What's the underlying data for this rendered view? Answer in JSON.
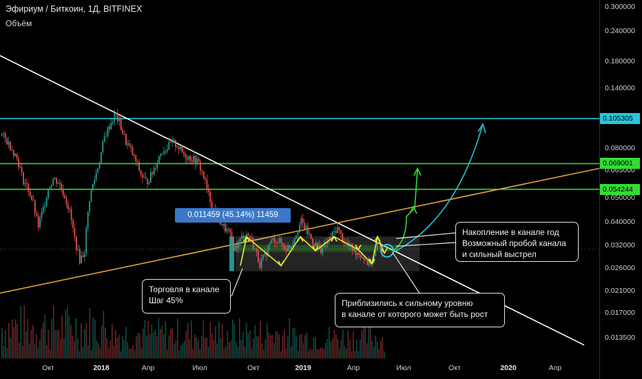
{
  "chart_title": "Эфириум / Биткоин, 1Д, BITFINEX",
  "volume_label": "Объём",
  "chart_data": {
    "type": "candlestick",
    "symbol": "ETH/BTC",
    "timeframe": "1Д",
    "exchange": "BITFINEX",
    "y_scale": "log",
    "y_ticks": [
      "0.300000",
      "0.240000",
      "0.180000",
      "0.140000",
      "0.080000",
      "0.065000",
      "0.050000",
      "0.040000",
      "0.032000",
      "0.026000",
      "0.021000",
      "0.017000",
      "0.013500"
    ],
    "x_ticks": [
      "Окт",
      "2018",
      "Апр",
      "Июл",
      "Окт",
      "2019",
      "Апр",
      "Июл",
      "Окт",
      "2020",
      "Апр"
    ],
    "x_year_ticks": [
      "2018",
      "2019",
      "2020"
    ],
    "price_levels": [
      {
        "value": "0.105305",
        "color": "#26c6da"
      },
      {
        "value": "0.069001",
        "color": "#33dd33"
      },
      {
        "value": "0.054244",
        "color": "#33dd33"
      }
    ],
    "price_path": [
      0.09,
      0.085,
      0.079,
      0.072,
      0.06,
      0.055,
      0.048,
      0.038,
      0.045,
      0.055,
      0.06,
      0.058,
      0.052,
      0.045,
      0.035,
      0.028,
      0.03,
      0.05,
      0.06,
      0.072,
      0.09,
      0.1,
      0.11,
      0.098,
      0.085,
      0.078,
      0.07,
      0.062,
      0.058,
      0.062,
      0.07,
      0.078,
      0.08,
      0.084,
      0.082,
      0.076,
      0.074,
      0.072,
      0.07,
      0.062,
      0.052,
      0.045,
      0.041,
      0.038,
      0.036,
      0.031,
      0.033,
      0.036,
      0.035,
      0.031,
      0.027,
      0.029,
      0.033,
      0.034,
      0.033,
      0.031,
      0.032,
      0.036,
      0.04,
      0.037,
      0.034,
      0.032,
      0.031,
      0.033,
      0.035,
      0.038,
      0.034,
      0.032,
      0.031,
      0.03,
      0.029,
      0.027,
      0.028,
      0.033,
      0.03
    ],
    "measure_label": "0.011459 (45.14%) 11459",
    "annotations": [
      {
        "text": "Торговля в канале\nШаг 45%"
      },
      {
        "text": "Приблизились к сильному уровню\nв канале от которого может быть рост"
      },
      {
        "text": "Накопление в канале год\nВозможный пробой канала\nи сильный выстрел"
      }
    ],
    "grid": false
  },
  "colors": {
    "up": "#26a69a",
    "down": "#ef5350",
    "trend": "#ffffff",
    "support": "#e0a13a",
    "cyan": "#26c6da",
    "green": "#33dd33",
    "yellow": "#f0ea2e"
  }
}
